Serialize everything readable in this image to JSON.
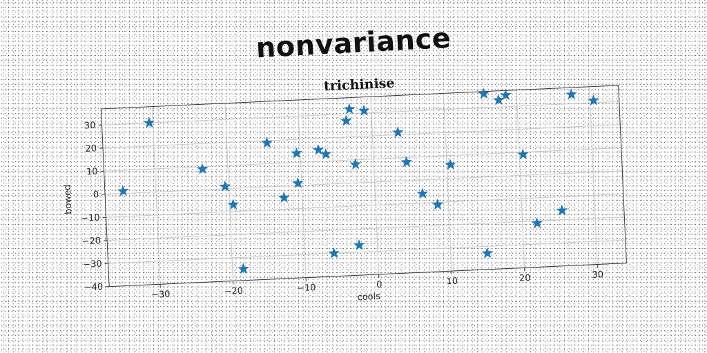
{
  "headline": "nonvariance",
  "chart_data": {
    "type": "scatter",
    "title": "trichinise",
    "xlabel": "cools",
    "ylabel": "bowed",
    "xlim": [
      -37,
      34
    ],
    "ylim": [
      -40,
      37
    ],
    "xticks": [
      -30,
      -20,
      -10,
      0,
      10,
      20,
      30
    ],
    "yticks": [
      -40,
      -30,
      -20,
      -10,
      0,
      10,
      20,
      30
    ],
    "grid": true,
    "marker": "star",
    "color": "#1f77b4",
    "series": [
      {
        "x": [
          -34.5,
          -30.5,
          -23.5,
          -20.5,
          -19.5,
          -18.5,
          -14.5,
          -12.5,
          -10.5,
          -10.5,
          -7.5,
          -6.5,
          -6.0,
          -3.5,
          -3.0,
          -2.5,
          -2.5,
          -1.0,
          3.5,
          4.5,
          6.5,
          8.5,
          10.5,
          15.0,
          15.5,
          17.5,
          18.5,
          20.5,
          22.0,
          25.5,
          27.5,
          30.5
        ],
        "y": [
          1,
          30,
          9,
          1,
          -7,
          -35,
          19,
          -5,
          14,
          1,
          15,
          13,
          -30,
          27,
          32,
          8,
          -27,
          31,
          21,
          8,
          -6,
          -11,
          6,
          -33,
          36,
          33,
          35,
          9,
          -21,
          -16,
          34,
          31
        ]
      }
    ]
  }
}
